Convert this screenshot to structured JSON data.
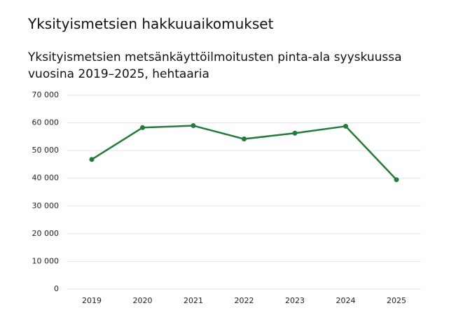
{
  "heading": "Yksityismetsien hakkuuaikomukset",
  "chart_data": {
    "type": "line",
    "title": "Yksityismetsien metsänkäyttöilmoitusten pinta-ala syyskuussa vuosina 2019–2025, hehtaaria",
    "categories": [
      "2019",
      "2020",
      "2021",
      "2022",
      "2023",
      "2024",
      "2025"
    ],
    "series": [
      {
        "name": "Pinta-ala",
        "color": "#237a3b",
        "values": [
          46800,
          58300,
          59000,
          54200,
          56300,
          58800,
          39500
        ]
      }
    ],
    "ylim": [
      0,
      70000
    ],
    "yticks": [
      0,
      {
        "value": 10000,
        "label": "10 000"
      },
      {
        "value": 20000,
        "label": "20 000"
      },
      {
        "value": 30000,
        "label": "30 000"
      },
      {
        "value": 40000,
        "label": "40 000"
      },
      {
        "value": 50000,
        "label": "50 000"
      },
      {
        "value": 60000,
        "label": "60 000"
      },
      {
        "value": 70000,
        "label": "70 000"
      }
    ],
    "grid": true
  }
}
